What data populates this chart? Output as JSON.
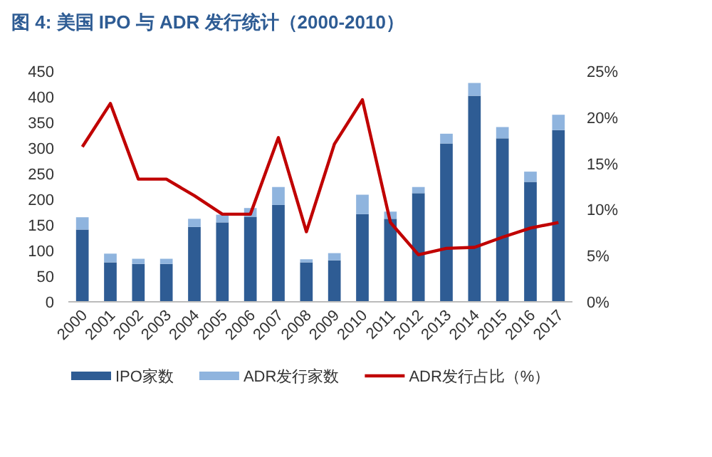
{
  "chart_data": {
    "type": "bar",
    "title": "图 4: 美国 IPO 与 ADR 发行统计（2000-2010）",
    "categories": [
      "2000",
      "2001",
      "2002",
      "2003",
      "2004",
      "2005",
      "2006",
      "2007",
      "2008",
      "2009",
      "2010",
      "2011",
      "2012",
      "2013",
      "2014",
      "2015",
      "2016",
      "2017"
    ],
    "stacked": true,
    "series": [
      {
        "name": "IPO家数",
        "color": "#2e5c94",
        "values": [
          141,
          77,
          74,
          74,
          146,
          155,
          166,
          189,
          77,
          81,
          171,
          162,
          212,
          309,
          402,
          319,
          234,
          335
        ]
      },
      {
        "name": "ADR发行家数",
        "color": "#8fb4de",
        "values": [
          24,
          17,
          10,
          10,
          16,
          15,
          17,
          35,
          6,
          14,
          38,
          14,
          12,
          19,
          25,
          22,
          20,
          30
        ]
      },
      {
        "name": "ADR发行占比（%）",
        "type": "line",
        "axis": "y2",
        "color": "#c00000",
        "values": [
          16.8,
          21.5,
          13.3,
          13.3,
          11.5,
          9.5,
          9.5,
          17.8,
          7.6,
          17.1,
          21.9,
          8.6,
          5.1,
          5.8,
          5.9,
          7.0,
          8.0,
          8.6
        ]
      }
    ],
    "ylim": [
      0,
      450
    ],
    "yticks": [
      0,
      50,
      100,
      150,
      200,
      250,
      300,
      350,
      400,
      450
    ],
    "y2lim": [
      0,
      25
    ],
    "y2ticks": [
      {
        "value": 0,
        "label": "0%"
      },
      {
        "value": 5,
        "label": "5%"
      },
      {
        "value": 10,
        "label": "10%"
      },
      {
        "value": 15,
        "label": "15%"
      },
      {
        "value": 20,
        "label": "20%"
      },
      {
        "value": 25,
        "label": "25%"
      }
    ],
    "grid": false,
    "legend": "bottom"
  }
}
